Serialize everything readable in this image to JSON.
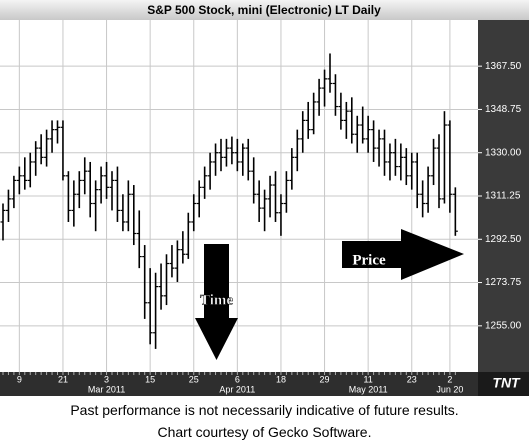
{
  "chart_data": {
    "type": "ohlc",
    "title": "S&P 500 Stock, mini (Electronic) LT Daily",
    "categories": [
      null,
      null,
      null,
      "9",
      null,
      null,
      null,
      null,
      null,
      null,
      null,
      "21",
      null,
      null,
      null,
      null,
      null,
      null,
      null,
      "3",
      null,
      null,
      null,
      null,
      null,
      null,
      null,
      "15",
      null,
      null,
      null,
      null,
      null,
      null,
      null,
      "25",
      null,
      null,
      null,
      null,
      null,
      null,
      null,
      "6",
      null,
      null,
      null,
      null,
      null,
      null,
      null,
      "18",
      null,
      null,
      null,
      null,
      null,
      null,
      null,
      "29",
      null,
      null,
      null,
      null,
      null,
      null,
      null,
      "11",
      null,
      null,
      null,
      null,
      null,
      null,
      null,
      "23",
      null,
      null,
      null,
      null,
      null,
      null,
      "2",
      null
    ],
    "month_labels": [
      null,
      null,
      null,
      null,
      null,
      null,
      null,
      null,
      null,
      null,
      null,
      null,
      null,
      null,
      null,
      null,
      null,
      null,
      null,
      "Mar 2011",
      null,
      null,
      null,
      null,
      null,
      null,
      null,
      null,
      null,
      null,
      null,
      null,
      null,
      null,
      null,
      null,
      null,
      null,
      null,
      null,
      null,
      null,
      null,
      "Apr 2011",
      null,
      null,
      null,
      null,
      null,
      null,
      null,
      null,
      null,
      null,
      null,
      null,
      null,
      null,
      null,
      null,
      null,
      null,
      null,
      null,
      null,
      null,
      null,
      "May 2011",
      null,
      null,
      null,
      null,
      null,
      null,
      null,
      null,
      null,
      null,
      null,
      null,
      null,
      null,
      "Jun 20",
      null
    ],
    "open": [
      1300,
      1305,
      1310,
      1318,
      1320,
      1318,
      1326,
      1332,
      1328,
      1336,
      1340,
      1341,
      1320,
      1305,
      1312,
      1318,
      1322,
      1308,
      1314,
      1320,
      1315,
      1318,
      1305,
      1300,
      1312,
      1295,
      1285,
      1265,
      1252,
      1272,
      1268,
      1282,
      1280,
      1288,
      1286,
      1300,
      1308,
      1315,
      1320,
      1326,
      1330,
      1328,
      1332,
      1330,
      1326,
      1332,
      1322,
      1312,
      1306,
      1310,
      1316,
      1304,
      1308,
      1318,
      1328,
      1336,
      1344,
      1340,
      1352,
      1358,
      1362,
      1360,
      1350,
      1344,
      1348,
      1338,
      1342,
      1336,
      1340,
      1332,
      1336,
      1326,
      1330,
      1324,
      1328,
      1320,
      1326,
      1312,
      1308,
      1320,
      1332,
      1310,
      1342,
      1312
    ],
    "high": [
      1308,
      1314,
      1320,
      1324,
      1328,
      1330,
      1335,
      1338,
      1340,
      1344,
      1344,
      1344,
      1322,
      1318,
      1322,
      1328,
      1326,
      1318,
      1324,
      1326,
      1322,
      1324,
      1312,
      1318,
      1316,
      1305,
      1290,
      1280,
      1278,
      1282,
      1286,
      1290,
      1292,
      1296,
      1304,
      1312,
      1318,
      1324,
      1330,
      1334,
      1336,
      1336,
      1337,
      1336,
      1334,
      1336,
      1328,
      1318,
      1314,
      1320,
      1322,
      1312,
      1322,
      1332,
      1340,
      1348,
      1352,
      1356,
      1362,
      1366,
      1373,
      1364,
      1356,
      1352,
      1354,
      1346,
      1350,
      1346,
      1344,
      1340,
      1340,
      1334,
      1336,
      1334,
      1332,
      1330,
      1330,
      1318,
      1324,
      1336,
      1338,
      1348,
      1344,
      1315
    ],
    "low": [
      1292,
      1300,
      1306,
      1312,
      1314,
      1315,
      1320,
      1325,
      1324,
      1330,
      1334,
      1318,
      1300,
      1298,
      1306,
      1312,
      1302,
      1296,
      1308,
      1310,
      1305,
      1300,
      1296,
      1296,
      1290,
      1280,
      1258,
      1247,
      1245,
      1262,
      1264,
      1276,
      1274,
      1282,
      1284,
      1296,
      1302,
      1310,
      1314,
      1320,
      1322,
      1324,
      1325,
      1322,
      1320,
      1318,
      1308,
      1300,
      1296,
      1302,
      1300,
      1294,
      1304,
      1314,
      1322,
      1330,
      1336,
      1338,
      1346,
      1350,
      1356,
      1346,
      1340,
      1336,
      1334,
      1330,
      1334,
      1330,
      1326,
      1324,
      1320,
      1318,
      1320,
      1318,
      1316,
      1314,
      1306,
      1302,
      1304,
      1316,
      1306,
      1308,
      1304,
      1294
    ],
    "close": [
      1305,
      1310,
      1318,
      1320,
      1318,
      1326,
      1332,
      1328,
      1336,
      1340,
      1341,
      1320,
      1305,
      1312,
      1318,
      1322,
      1308,
      1314,
      1320,
      1315,
      1318,
      1305,
      1300,
      1312,
      1295,
      1285,
      1265,
      1252,
      1272,
      1268,
      1282,
      1280,
      1288,
      1286,
      1300,
      1308,
      1315,
      1320,
      1326,
      1330,
      1328,
      1332,
      1330,
      1326,
      1332,
      1322,
      1312,
      1306,
      1310,
      1316,
      1304,
      1308,
      1318,
      1328,
      1336,
      1344,
      1340,
      1352,
      1358,
      1362,
      1360,
      1350,
      1344,
      1348,
      1338,
      1342,
      1336,
      1340,
      1332,
      1336,
      1326,
      1330,
      1324,
      1328,
      1320,
      1326,
      1312,
      1308,
      1320,
      1332,
      1310,
      1342,
      1312,
      1296
    ],
    "color": "#000000",
    "ylim": [
      1235,
      1387.5
    ],
    "yticks": [
      {
        "value": 1255,
        "label": "1255.00"
      },
      {
        "value": 1273.75,
        "label": "1273.75"
      },
      {
        "value": 1292.5,
        "label": "1292.50"
      },
      {
        "value": 1311.25,
        "label": "1311.25"
      },
      {
        "value": 1330,
        "label": "1330.00"
      },
      {
        "value": 1348.75,
        "label": "1348.75"
      },
      {
        "value": 1367.5,
        "label": "1367.50"
      }
    ],
    "grid": true,
    "annotations": [
      "Time",
      "Price"
    ],
    "logo": "TNT"
  },
  "caption": [
    "Past performance is not necessarily indicative of future results.",
    "Chart courtesy of Gecko Software."
  ]
}
